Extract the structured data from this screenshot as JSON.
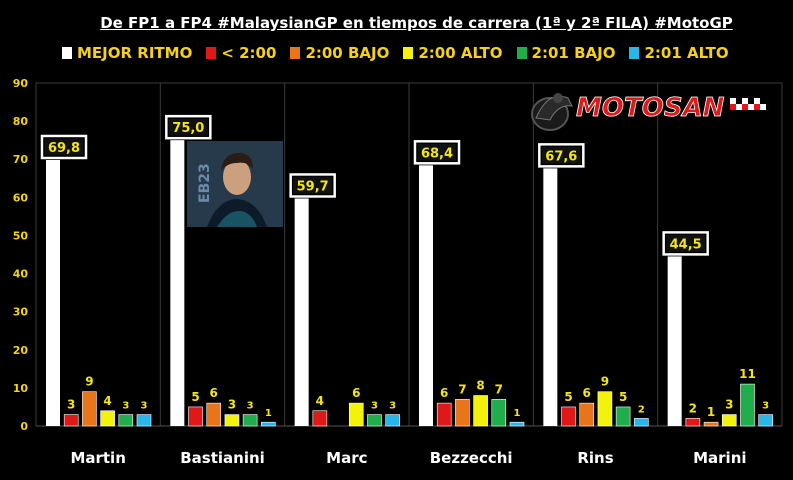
{
  "title": "De FP1 a FP4 #MalaysianGP en tiempos de carrera (1ª y 2ª FILA) #MotoGP",
  "logo_text": "MOTOSAN",
  "photo_text": "EB23",
  "chart_data": {
    "type": "bar",
    "categories": [
      "Martin",
      "Bastianini",
      "Marc",
      "Bezzecchi",
      "Rins",
      "Marini"
    ],
    "series": [
      {
        "name": "MEJOR RITMO",
        "color": "#ffffff",
        "values": [
          69.8,
          75.0,
          59.7,
          68.4,
          67.6,
          44.5
        ],
        "labels": [
          "69,8",
          "75,0",
          "59,7",
          "68,4",
          "67,6",
          "44,5"
        ]
      },
      {
        "name": "< 2:00",
        "color": "#e01818",
        "values": [
          3,
          5,
          4,
          6,
          5,
          2
        ],
        "labels": [
          "3",
          "5",
          "4",
          "6",
          "5",
          "2"
        ]
      },
      {
        "name": "2:00 BAJO",
        "color": "#e8751a",
        "values": [
          9,
          6,
          0,
          7,
          6,
          1
        ],
        "labels": [
          "9",
          "6",
          "",
          "7",
          "6",
          "1"
        ]
      },
      {
        "name": "2:00 ALTO",
        "color": "#f2f20a",
        "values": [
          4,
          3,
          6,
          8,
          9,
          3
        ],
        "labels": [
          "4",
          "3",
          "6",
          "8",
          "9",
          "3"
        ]
      },
      {
        "name": "2:01 BAJO",
        "color": "#1fae4b",
        "values": [
          3,
          3,
          3,
          7,
          5,
          11
        ],
        "labels": [
          "3",
          "3",
          "3",
          "7",
          "5",
          "11"
        ]
      },
      {
        "name": "2:01 ALTO",
        "color": "#29b6e8",
        "values": [
          3,
          1,
          3,
          1,
          2,
          3
        ],
        "labels": [
          "3",
          "1",
          "3",
          "1",
          "2",
          "3"
        ]
      }
    ],
    "ylim": [
      0,
      90
    ],
    "yticks": [
      "0",
      "10",
      "20",
      "30",
      "40",
      "50",
      "60",
      "70",
      "80",
      "90"
    ],
    "grid": false,
    "legend_position": "top"
  }
}
